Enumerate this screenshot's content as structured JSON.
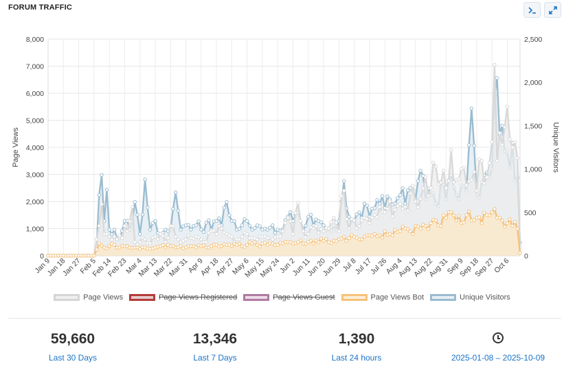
{
  "header": {
    "title": "FORUM TRAFFIC",
    "terminal_icon": "terminal-icon",
    "expand_icon": "expand-icon"
  },
  "chart_data": {
    "type": "area",
    "yaxis_left": {
      "label": "Page Views",
      "range": [
        0,
        8000
      ],
      "ticks": [
        "0",
        "1,000",
        "2,000",
        "3,000",
        "4,000",
        "5,000",
        "6,000",
        "7,000",
        "8,000"
      ]
    },
    "yaxis_right": {
      "label": "Unique Visitors",
      "range": [
        0,
        2500
      ],
      "ticks": [
        "0",
        "500",
        "1,000",
        "1,500",
        "2,000",
        "2,500"
      ]
    },
    "x_ticks": [
      "Jan 9",
      "Jan 18",
      "Jan 27",
      "Feb 5",
      "Feb 14",
      "Feb 23",
      "Mar 4",
      "Mar 13",
      "Mar 22",
      "Mar 31",
      "Apr 9",
      "Apr 18",
      "Apr 27",
      "May 6",
      "May 15",
      "May 24",
      "Jun 2",
      "Jun 11",
      "Jun 20",
      "Jun 29",
      "Jul 8",
      "Jul 17",
      "Jul 26",
      "Aug 4",
      "Aug 13",
      "Aug 22",
      "Aug 31",
      "Sep 9",
      "Sep 18",
      "Sep 27",
      "Oct 6"
    ],
    "grid": true,
    "legend_position": "bottom",
    "series": [
      {
        "name": "Page Views",
        "axis": "left",
        "color": "#d9d9d9",
        "visible": true,
        "anchors": [
          [
            0,
            0
          ],
          [
            18,
            0
          ],
          [
            20,
            1100
          ],
          [
            21,
            1900
          ],
          [
            22,
            800
          ],
          [
            24,
            700
          ],
          [
            27,
            600
          ],
          [
            29,
            650
          ],
          [
            30,
            1100
          ],
          [
            31,
            900
          ],
          [
            33,
            1800
          ],
          [
            34,
            500
          ],
          [
            36,
            500
          ],
          [
            38,
            600
          ],
          [
            40,
            450
          ],
          [
            42,
            700
          ],
          [
            44,
            800
          ],
          [
            46,
            500
          ],
          [
            48,
            1100
          ],
          [
            50,
            700
          ],
          [
            52,
            500
          ],
          [
            54,
            600
          ],
          [
            56,
            650
          ],
          [
            58,
            700
          ],
          [
            60,
            600
          ],
          [
            62,
            500
          ],
          [
            64,
            900
          ],
          [
            66,
            800
          ],
          [
            68,
            1000
          ],
          [
            70,
            800
          ],
          [
            72,
            700
          ],
          [
            74,
            600
          ],
          [
            76,
            700
          ],
          [
            78,
            800
          ],
          [
            80,
            650
          ],
          [
            82,
            600
          ],
          [
            84,
            700
          ],
          [
            86,
            650
          ],
          [
            88,
            600
          ],
          [
            90,
            700
          ],
          [
            92,
            900
          ],
          [
            94,
            1400
          ],
          [
            96,
            800
          ],
          [
            98,
            1950
          ],
          [
            100,
            900
          ],
          [
            102,
            800
          ],
          [
            104,
            1000
          ],
          [
            106,
            850
          ],
          [
            108,
            900
          ],
          [
            110,
            1000
          ],
          [
            112,
            1400
          ],
          [
            114,
            900
          ],
          [
            115,
            2200
          ],
          [
            116,
            2400
          ],
          [
            118,
            1000
          ],
          [
            120,
            1300
          ],
          [
            122,
            1100
          ],
          [
            124,
            1400
          ],
          [
            126,
            1200
          ],
          [
            128,
            1500
          ],
          [
            130,
            1800
          ],
          [
            132,
            1600
          ],
          [
            134,
            2000
          ],
          [
            136,
            1700
          ],
          [
            138,
            1900
          ],
          [
            140,
            1800
          ],
          [
            142,
            2300
          ],
          [
            144,
            2000
          ],
          [
            146,
            2100
          ],
          [
            148,
            2900
          ],
          [
            150,
            2500
          ],
          [
            152,
            3300
          ],
          [
            154,
            2700
          ],
          [
            156,
            2500
          ],
          [
            158,
            3900
          ],
          [
            160,
            2800
          ],
          [
            162,
            3200
          ],
          [
            164,
            2600
          ],
          [
            166,
            2800
          ],
          [
            168,
            2400
          ],
          [
            170,
            3500
          ],
          [
            172,
            2900
          ],
          [
            174,
            4200
          ],
          [
            175,
            7050
          ],
          [
            176,
            3500
          ],
          [
            178,
            4100
          ],
          [
            180,
            5500
          ],
          [
            182,
            4000
          ],
          [
            184,
            3600
          ],
          [
            185,
            300
          ]
        ]
      },
      {
        "name": "Page Views Registered",
        "axis": "left",
        "color": "#b33a3a",
        "visible": false
      },
      {
        "name": "Page Views Guest",
        "axis": "left",
        "color": "#b07aa1",
        "visible": false
      },
      {
        "name": "Page Views Bot",
        "axis": "left",
        "color": "#f5c27a",
        "visible": true,
        "anchors": [
          [
            0,
            0
          ],
          [
            18,
            0
          ],
          [
            20,
            450
          ],
          [
            22,
            300
          ],
          [
            24,
            350
          ],
          [
            26,
            400
          ],
          [
            28,
            300
          ],
          [
            30,
            350
          ],
          [
            32,
            300
          ],
          [
            34,
            300
          ],
          [
            36,
            250
          ],
          [
            38,
            300
          ],
          [
            40,
            250
          ],
          [
            42,
            300
          ],
          [
            44,
            350
          ],
          [
            46,
            300
          ],
          [
            48,
            350
          ],
          [
            50,
            300
          ],
          [
            52,
            350
          ],
          [
            54,
            300
          ],
          [
            56,
            350
          ],
          [
            58,
            300
          ],
          [
            60,
            350
          ],
          [
            62,
            300
          ],
          [
            64,
            350
          ],
          [
            66,
            400
          ],
          [
            68,
            350
          ],
          [
            70,
            400
          ],
          [
            72,
            350
          ],
          [
            74,
            400
          ],
          [
            76,
            350
          ],
          [
            78,
            400
          ],
          [
            80,
            450
          ],
          [
            82,
            400
          ],
          [
            84,
            450
          ],
          [
            86,
            400
          ],
          [
            88,
            450
          ],
          [
            90,
            400
          ],
          [
            92,
            450
          ],
          [
            94,
            500
          ],
          [
            96,
            450
          ],
          [
            98,
            500
          ],
          [
            100,
            450
          ],
          [
            102,
            500
          ],
          [
            104,
            450
          ],
          [
            106,
            500
          ],
          [
            108,
            550
          ],
          [
            110,
            500
          ],
          [
            112,
            550
          ],
          [
            114,
            600
          ],
          [
            116,
            700
          ],
          [
            118,
            650
          ],
          [
            120,
            700
          ],
          [
            122,
            600
          ],
          [
            124,
            700
          ],
          [
            126,
            750
          ],
          [
            128,
            800
          ],
          [
            130,
            750
          ],
          [
            132,
            900
          ],
          [
            134,
            800
          ],
          [
            136,
            950
          ],
          [
            138,
            900
          ],
          [
            140,
            1000
          ],
          [
            142,
            900
          ],
          [
            144,
            1100
          ],
          [
            146,
            1000
          ],
          [
            148,
            1100
          ],
          [
            150,
            1200
          ],
          [
            152,
            1300
          ],
          [
            154,
            1100
          ],
          [
            156,
            1400
          ],
          [
            158,
            1600
          ],
          [
            160,
            1300
          ],
          [
            162,
            1200
          ],
          [
            164,
            1500
          ],
          [
            166,
            1300
          ],
          [
            168,
            1400
          ],
          [
            170,
            1200
          ],
          [
            172,
            1500
          ],
          [
            174,
            1600
          ],
          [
            176,
            1400
          ],
          [
            178,
            1300
          ],
          [
            180,
            1200
          ],
          [
            182,
            1100
          ],
          [
            184,
            1000
          ],
          [
            185,
            100
          ]
        ]
      },
      {
        "name": "Unique Visitors",
        "axis": "right",
        "color": "#9bbcd0",
        "visible": true,
        "anchors": [
          [
            0,
            0
          ],
          [
            18,
            0
          ],
          [
            19,
            100
          ],
          [
            20,
            700
          ],
          [
            21,
            930
          ],
          [
            22,
            400
          ],
          [
            23,
            760
          ],
          [
            24,
            300
          ],
          [
            26,
            300
          ],
          [
            28,
            200
          ],
          [
            30,
            400
          ],
          [
            32,
            300
          ],
          [
            34,
            620
          ],
          [
            36,
            250
          ],
          [
            38,
            880
          ],
          [
            40,
            300
          ],
          [
            42,
            400
          ],
          [
            44,
            250
          ],
          [
            46,
            300
          ],
          [
            48,
            300
          ],
          [
            50,
            730
          ],
          [
            52,
            300
          ],
          [
            54,
            350
          ],
          [
            56,
            300
          ],
          [
            58,
            350
          ],
          [
            60,
            300
          ],
          [
            62,
            380
          ],
          [
            64,
            300
          ],
          [
            66,
            400
          ],
          [
            68,
            350
          ],
          [
            70,
            620
          ],
          [
            72,
            400
          ],
          [
            74,
            300
          ],
          [
            76,
            350
          ],
          [
            78,
            400
          ],
          [
            80,
            300
          ],
          [
            82,
            350
          ],
          [
            84,
            300
          ],
          [
            86,
            300
          ],
          [
            88,
            350
          ],
          [
            90,
            300
          ],
          [
            92,
            300
          ],
          [
            94,
            450
          ],
          [
            96,
            400
          ],
          [
            98,
            500
          ],
          [
            100,
            300
          ],
          [
            102,
            450
          ],
          [
            104,
            350
          ],
          [
            106,
            400
          ],
          [
            108,
            350
          ],
          [
            110,
            300
          ],
          [
            112,
            350
          ],
          [
            114,
            400
          ],
          [
            116,
            860
          ],
          [
            118,
            450
          ],
          [
            120,
            400
          ],
          [
            122,
            500
          ],
          [
            124,
            600
          ],
          [
            126,
            450
          ],
          [
            128,
            550
          ],
          [
            130,
            600
          ],
          [
            132,
            550
          ],
          [
            134,
            650
          ],
          [
            136,
            600
          ],
          [
            138,
            700
          ],
          [
            140,
            600
          ],
          [
            142,
            780
          ],
          [
            144,
            650
          ],
          [
            146,
            980
          ],
          [
            148,
            650
          ],
          [
            150,
            700
          ],
          [
            152,
            600
          ],
          [
            154,
            850
          ],
          [
            156,
            650
          ],
          [
            158,
            930
          ],
          [
            160,
            700
          ],
          [
            162,
            810
          ],
          [
            164,
            750
          ],
          [
            166,
            1700
          ],
          [
            168,
            700
          ],
          [
            170,
            850
          ],
          [
            172,
            960
          ],
          [
            174,
            1000
          ],
          [
            175,
            1850
          ],
          [
            176,
            2050
          ],
          [
            177,
            1400
          ],
          [
            178,
            1500
          ],
          [
            180,
            1200
          ],
          [
            182,
            1300
          ],
          [
            184,
            900
          ],
          [
            185,
            150
          ]
        ]
      }
    ]
  },
  "legend": [
    {
      "label": "Page Views",
      "border": "#d5d5d5",
      "fill": "#efefef",
      "hidden": false
    },
    {
      "label": "Page Views Registered",
      "border": "#b33a3a",
      "fill": "#e9cccc",
      "hidden": true
    },
    {
      "label": "Page Views Guest",
      "border": "#b07aa1",
      "fill": "#eddcea",
      "hidden": true
    },
    {
      "label": "Page Views Bot",
      "border": "#f5c27a",
      "fill": "#fdefd7",
      "hidden": false
    },
    {
      "label": "Unique Visitors",
      "border": "#9bbcd0",
      "fill": "#e6eef4",
      "hidden": false
    }
  ],
  "stats": [
    {
      "value": "59,660",
      "label": "Last 30 Days"
    },
    {
      "value": "13,346",
      "label": "Last 7 Days"
    },
    {
      "value": "1,390",
      "label": "Last 24 hours"
    },
    {
      "value": "",
      "label": "2025-01-08 – 2025-10-09",
      "icon": "clock-icon"
    }
  ]
}
